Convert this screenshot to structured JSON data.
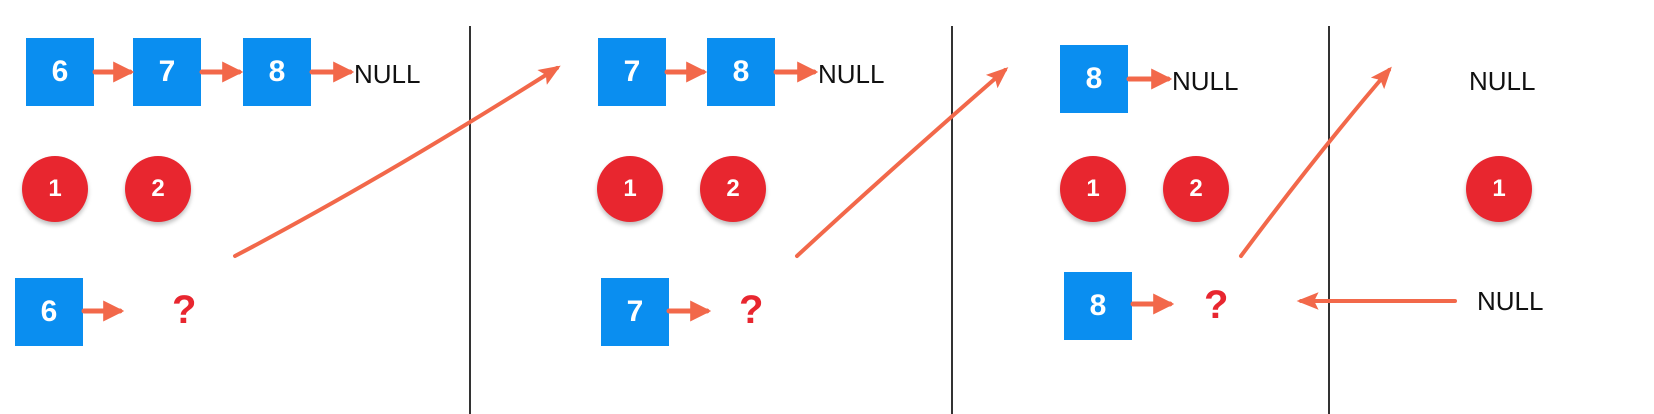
{
  "panels": [
    {
      "list": [
        "6",
        "7",
        "8"
      ],
      "list_end": "NULL",
      "badges": [
        "1",
        "2"
      ],
      "current": "6",
      "current_next": "?"
    },
    {
      "list": [
        "7",
        "8"
      ],
      "list_end": "NULL",
      "badges": [
        "1",
        "2"
      ],
      "current": "7",
      "current_next": "?"
    },
    {
      "list": [
        "8"
      ],
      "list_end": "NULL",
      "badges": [
        "1",
        "2"
      ],
      "current": "8",
      "current_next": "?"
    },
    {
      "list": [],
      "list_end": "NULL",
      "badges": [
        "1"
      ],
      "bottom_text": "NULL"
    }
  ],
  "colors": {
    "node": "#0a8ef0",
    "badge": "#e8262f",
    "arrow": "#f2684a",
    "question": "#e8262f",
    "separator": "#333333"
  }
}
